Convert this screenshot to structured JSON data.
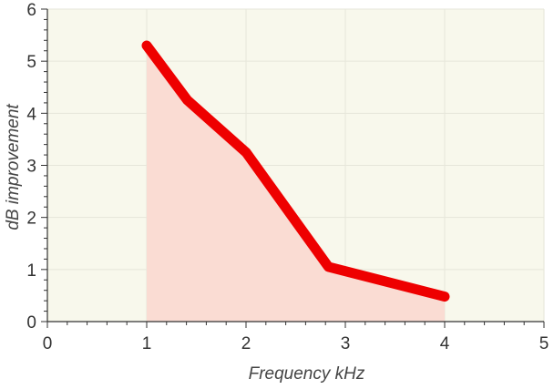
{
  "chart_data": {
    "type": "area",
    "title": "",
    "xlabel": "Frequency kHz",
    "ylabel": "dB improvement",
    "xlim": [
      0,
      5
    ],
    "ylim": [
      0,
      6
    ],
    "x_ticks": [
      0,
      1,
      2,
      3,
      4,
      5
    ],
    "y_ticks": [
      0,
      1,
      2,
      3,
      4,
      5,
      6
    ],
    "grid": true,
    "series": [
      {
        "x": [
          1,
          1.41,
          2,
          2.83,
          4
        ],
        "y": [
          5.3,
          4.25,
          3.25,
          1.05,
          0.48
        ],
        "line_color": "#ee0000",
        "fill_color": "#fadcd3"
      }
    ],
    "plot_background": "#f8f8ec",
    "grid_color": "#e6e6da"
  }
}
